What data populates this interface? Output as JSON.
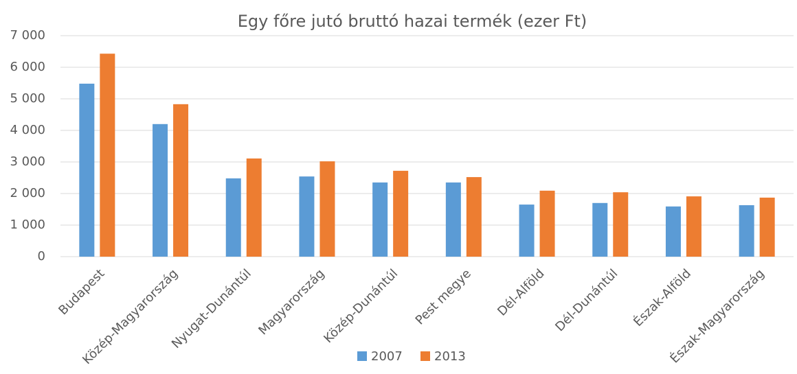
{
  "chart_data": {
    "type": "bar",
    "title": "Egy főre jutó bruttó hazai termék (ezer Ft)",
    "categories": [
      "Budapest",
      "Közép-Magyarország",
      "Nyugat-Dunántúl",
      "Magyarország",
      "Közép-Dunántúl",
      "Pest megye",
      "Dél-Alföld",
      "Dél-Dunántúl",
      "Észak-Alföld",
      "Észak-Magyarország"
    ],
    "series": [
      {
        "name": "2007",
        "color": "#5b9bd5",
        "values": [
          5480,
          4200,
          2480,
          2540,
          2350,
          2350,
          1650,
          1700,
          1590,
          1630
        ]
      },
      {
        "name": "2013",
        "color": "#ed7d31",
        "values": [
          6430,
          4830,
          3110,
          3020,
          2720,
          2520,
          2090,
          2040,
          1910,
          1870
        ]
      }
    ],
    "ylim": [
      0,
      7000
    ],
    "yticks": [
      0,
      {
        "value": 1000,
        "label": "1 000"
      },
      {
        "value": 2000,
        "label": "2 000"
      },
      {
        "value": 3000,
        "label": "3 000"
      },
      {
        "value": 4000,
        "label": "4 000"
      },
      {
        "value": 5000,
        "label": "5 000"
      },
      {
        "value": 6000,
        "label": "6 000"
      },
      {
        "value": 7000,
        "label": "7 000"
      }
    ],
    "grid": true,
    "legend": "bottom"
  }
}
